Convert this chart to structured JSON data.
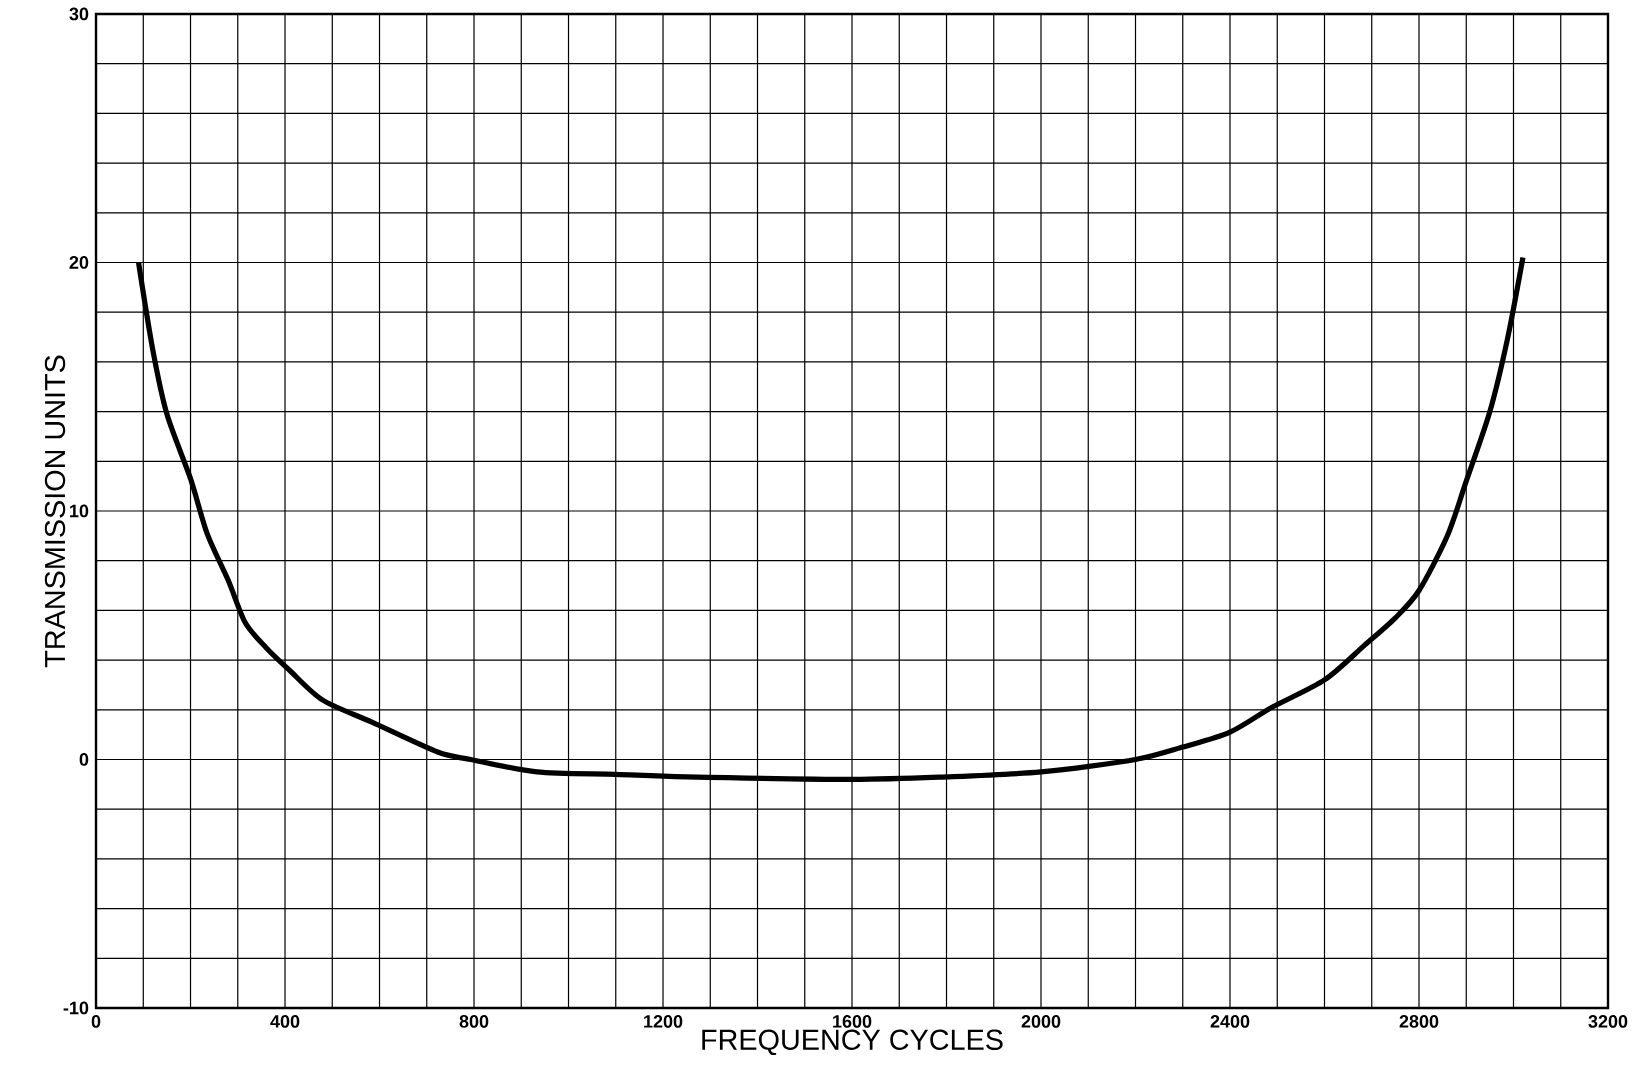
{
  "chart_data": {
    "type": "line",
    "xlabel": "FREQUENCY CYCLES",
    "ylabel": "TRANSMISSION UNITS",
    "xlim": [
      0,
      3200
    ],
    "ylim": [
      -10,
      30
    ],
    "xticks": [
      0,
      400,
      800,
      1200,
      1600,
      2000,
      2400,
      2800,
      3200
    ],
    "yticks": [
      -10,
      0,
      10,
      20,
      30
    ],
    "grid": true,
    "marker": "none",
    "line_style": "solid",
    "series": [
      {
        "color": "#000000",
        "x": [
          90,
          120,
          150,
          200,
          235,
          280,
          316,
          360,
          409,
          479,
          584,
          723,
          793,
          933,
          1100,
          1250,
          1600,
          1800,
          2000,
          2200,
          2300,
          2400,
          2489,
          2600,
          2685,
          2750,
          2800,
          2860,
          2900,
          2950,
          2987,
          3020
        ],
        "values": [
          20,
          16.5,
          13.9,
          11.3,
          9.1,
          7.2,
          5.5,
          4.5,
          3.6,
          2.4,
          1.5,
          0.3,
          0,
          -0.5,
          -0.6,
          -0.7,
          -0.8,
          -0.7,
          -0.5,
          0,
          0.5,
          1.1,
          2.1,
          3.2,
          4.6,
          5.7,
          6.8,
          9,
          11.2,
          14,
          16.9,
          20.2
        ]
      }
    ]
  }
}
